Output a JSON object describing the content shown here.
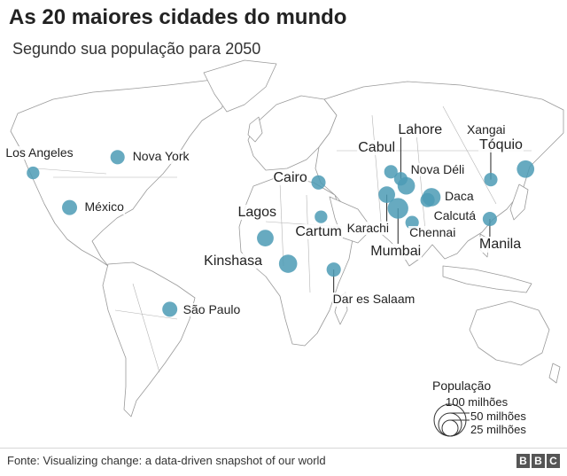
{
  "title": "As 20 maiores cidades do mundo",
  "subtitle": "Segundo sua população para 2050",
  "colors": {
    "bubble": "#4c9bb5",
    "land_stroke": "#9a9a9a",
    "land_fill": "#ffffff",
    "text": "#222222"
  },
  "legend": {
    "title": "População",
    "items": [
      {
        "label": "100 milhões",
        "population_millions": 100
      },
      {
        "label": "50 milhões",
        "population_millions": 50
      },
      {
        "label": "25 milhões",
        "population_millions": 25
      }
    ]
  },
  "cities": [
    {
      "name": "Los Angeles",
      "lat": 34.05,
      "lon": -118.24,
      "size": 0.35
    },
    {
      "name": "Nova York",
      "lat": 40.71,
      "lon": -74.0,
      "size": 0.45
    },
    {
      "name": "México",
      "lat": 19.43,
      "lon": -99.13,
      "size": 0.5
    },
    {
      "name": "São Paulo",
      "lat": -23.55,
      "lon": -46.63,
      "size": 0.5
    },
    {
      "name": "Lagos",
      "lat": 6.52,
      "lon": 3.38,
      "size": 0.6
    },
    {
      "name": "Kinshasa",
      "lat": -4.32,
      "lon": 15.31,
      "size": 0.7
    },
    {
      "name": "Cairo",
      "lat": 30.04,
      "lon": 31.24,
      "size": 0.45
    },
    {
      "name": "Cartum",
      "lat": 15.5,
      "lon": 32.56,
      "size": 0.35
    },
    {
      "name": "Dar es Salaam",
      "lat": -6.79,
      "lon": 39.21,
      "size": 0.45
    },
    {
      "name": "Cabul",
      "lat": 34.53,
      "lon": 69.17,
      "size": 0.4
    },
    {
      "name": "Lahore",
      "lat": 31.55,
      "lon": 74.34,
      "size": 0.4
    },
    {
      "name": "Nova Déli",
      "lat": 28.61,
      "lon": 77.21,
      "size": 0.65
    },
    {
      "name": "Karachi",
      "lat": 24.86,
      "lon": 67.01,
      "size": 0.6
    },
    {
      "name": "Mumbai",
      "lat": 19.08,
      "lon": 72.88,
      "size": 0.85
    },
    {
      "name": "Chennai",
      "lat": 13.08,
      "lon": 80.27,
      "size": 0.4
    },
    {
      "name": "Daca",
      "lat": 23.81,
      "lon": 90.41,
      "size": 0.7
    },
    {
      "name": "Calcutá",
      "lat": 22.57,
      "lon": 88.36,
      "size": 0.45
    },
    {
      "name": "Xangai",
      "lat": 31.23,
      "lon": 121.47,
      "size": 0.4
    },
    {
      "name": "Tóquio",
      "lat": 35.68,
      "lon": 139.69,
      "size": 0.65
    },
    {
      "name": "Manila",
      "lat": 14.6,
      "lon": 120.98,
      "size": 0.45
    }
  ],
  "source": "Fonte: Visualizing change: a data-driven snapshot of our world",
  "logo": "BBC"
}
